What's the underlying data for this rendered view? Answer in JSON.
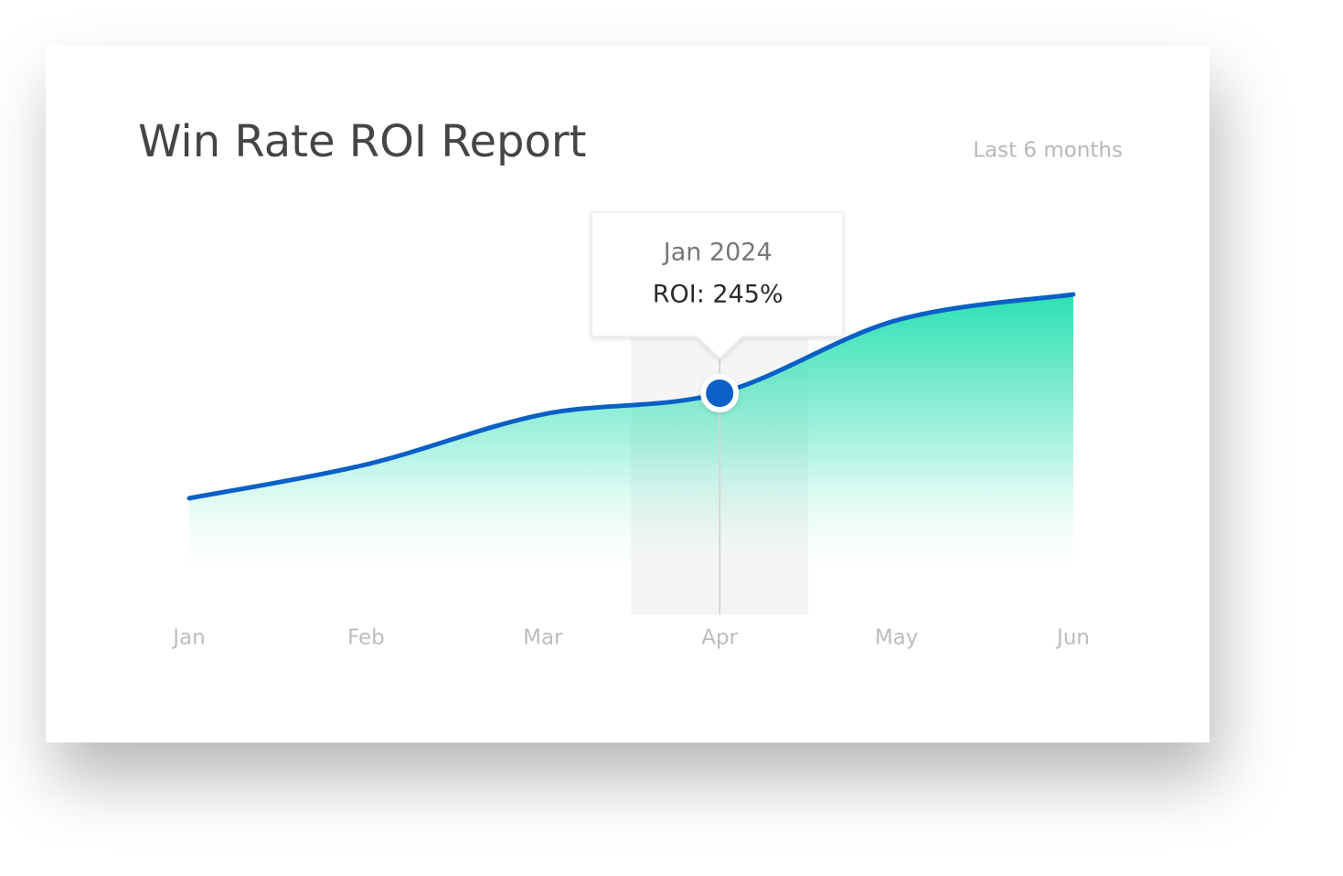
{
  "chart_data": {
    "type": "area",
    "title": "Win Rate ROI Report",
    "subtitle": "Last 6 months",
    "categories": [
      "Jan",
      "Feb",
      "Mar",
      "Apr",
      "May",
      "Jun"
    ],
    "values": [
      111,
      154,
      218,
      245,
      338,
      371
    ],
    "value_labels": [
      null,
      null,
      null,
      "ROI: 245%",
      null,
      null
    ],
    "tooltip": {
      "title": "Jan 2024"
    },
    "line_color": "#0a60c6",
    "fill_color": "#2de0b3"
  }
}
